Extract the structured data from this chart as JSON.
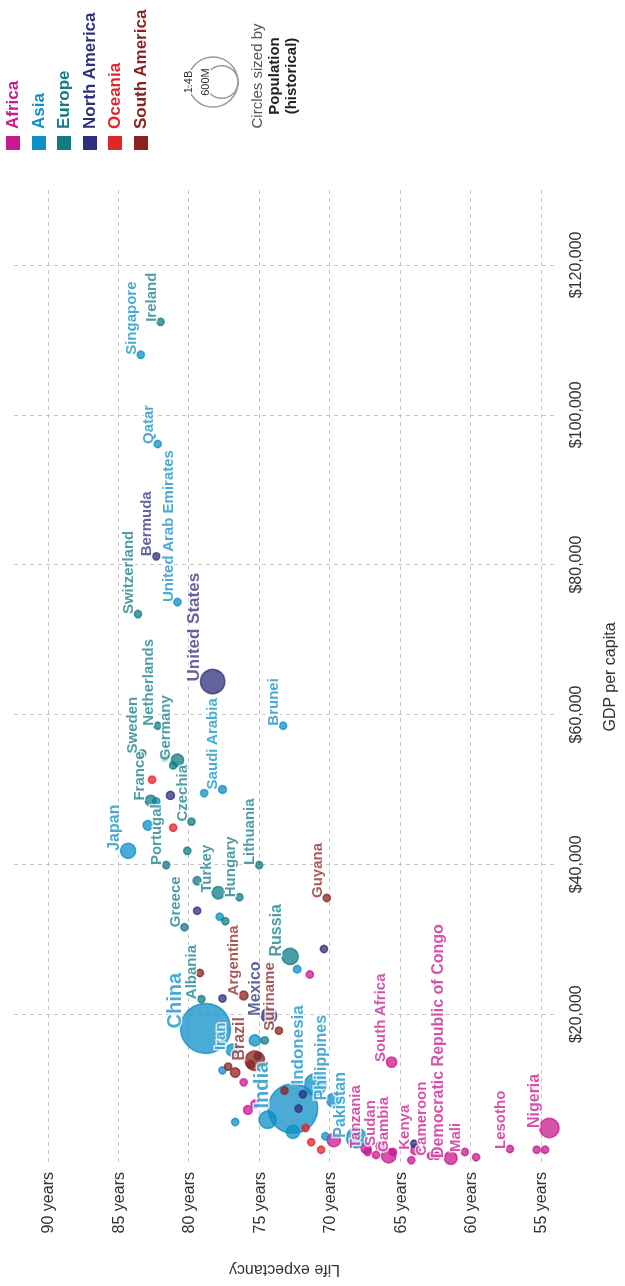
{
  "chart_data": {
    "type": "bubble",
    "xlabel": "Life expectancy",
    "ylabel": "GDP per capita",
    "xlim": [
      92.4,
      54
    ],
    "ylim": [
      0,
      130000
    ],
    "xticks": [
      {
        "value": 90,
        "label": "90 years"
      },
      {
        "value": 85,
        "label": "85 years"
      },
      {
        "value": 80,
        "label": "80 years"
      },
      {
        "value": 75,
        "label": "75 years"
      },
      {
        "value": 70,
        "label": "70 years"
      },
      {
        "value": 65,
        "label": "65 years"
      },
      {
        "value": 60,
        "label": "60 years"
      },
      {
        "value": 55,
        "label": "55 years"
      }
    ],
    "yticks": [
      {
        "value": 20000,
        "label": "$20,000"
      },
      {
        "value": 40000,
        "label": "$40,000"
      },
      {
        "value": 60000,
        "label": "$60,000"
      },
      {
        "value": 80000,
        "label": "$80,000"
      },
      {
        "value": 100000,
        "label": "$100,000"
      },
      {
        "value": 120000,
        "label": "$120,000"
      }
    ],
    "grid": true,
    "legend": "top left",
    "marker": "circle",
    "size_legend": [
      {
        "value": 1400,
        "label": "1.4B"
      },
      {
        "value": 600,
        "label": "600M"
      }
    ],
    "series": [
      {
        "name": "Africa",
        "color": "#c8198f",
        "x": [
          65.6,
          67.4,
          66.4,
          65.5,
          63.9,
          62.8,
          61.4,
          60.4,
          57.2,
          54.4,
          75.8,
          76.1,
          75.3,
          71.4,
          69.7,
          67.3,
          66.7,
          64.2,
          62.4,
          59.6,
          55.3,
          54.7,
          65.8
        ],
        "values": [
          13600,
          2100,
          2400,
          1600,
          1900,
          1100,
          800,
          1600,
          2000,
          4800,
          7200,
          10900,
          8000,
          25300,
          3200,
          1600,
          1200,
          500,
          1100,
          900,
          1900,
          1900,
          1100
        ],
        "sizes": [
          59,
          60,
          43,
          30,
          53,
          30,
          90,
          30,
          30,
          206,
          43,
          30,
          36,
          30,
          100,
          30,
          30,
          30,
          30,
          30,
          30,
          30,
          115
        ]
      },
      {
        "name": "Asia",
        "color": "#0e8fc6",
        "x": [
          83.4,
          82.2,
          80.8,
          77.6,
          73.3,
          84.3,
          78.8,
          76.9,
          72.6,
          71.0,
          69.7,
          68.1,
          82.9,
          82.3,
          78.9,
          72.3,
          76.7,
          74.4,
          72.6,
          70.3,
          77.6,
          75.3,
          77.8
        ],
        "values": [
          108000,
          96100,
          75000,
          50000,
          58500,
          41800,
          18100,
          15200,
          7400,
          10600,
          8500,
          3500,
          45200,
          48400,
          49500,
          26000,
          5600,
          5900,
          4300,
          3700,
          12500,
          16500,
          33000
        ],
        "sizes": [
          30,
          30,
          30,
          35,
          30,
          126,
          1400,
          84,
          1380,
          270,
          110,
          220,
          52,
          30,
          30,
          32,
          30,
          165,
          97,
          30,
          30,
          70,
          30
        ]
      },
      {
        "name": "Europe",
        "color": "#127c85",
        "x": [
          82.0,
          83.6,
          82.2,
          83.3,
          80.8,
          82.7,
          81.6,
          79.8,
          80.3,
          77.9,
          76.4,
          75.0,
          72.8,
          79.1,
          81.7,
          81.1,
          80.1,
          79.4,
          77.4,
          74.6
        ],
        "values": [
          112400,
          73400,
          58500,
          54800,
          53900,
          48500,
          39900,
          45700,
          31600,
          36200,
          35600,
          39900,
          27700,
          22000,
          54300,
          53200,
          41800,
          37800,
          32400,
          16500
        ],
        "sizes": [
          30,
          30,
          30,
          30,
          83,
          65,
          30,
          30,
          30,
          84,
          30,
          30,
          145,
          30,
          30,
          30,
          30,
          38,
          30,
          30
        ]
      },
      {
        "name": "North America",
        "color": "#2f2f7e",
        "x": [
          82.3,
          78.3,
          74.3,
          81.3,
          70.4,
          79.4,
          77.6,
          71.9,
          64.0,
          75.1,
          72.2
        ],
        "values": [
          81100,
          64400,
          19800,
          49200,
          28700,
          33800,
          22100,
          9300,
          2700,
          14400,
          7400
        ],
        "sizes": [
          30,
          330,
          128,
          38,
          30,
          30,
          30,
          30,
          30,
          30,
          30
        ]
      },
      {
        "name": "Oceania",
        "color": "#e0262b",
        "x": [
          82.6,
          81.1,
          71.7,
          71.3,
          70.6
        ],
        "values": [
          51300,
          44900,
          4800,
          2900,
          1900
        ],
        "sizes": [
          30,
          30,
          30,
          30,
          30
        ]
      },
      {
        "name": "South America",
        "color": "#8a2421",
        "x": [
          70.2,
          76.1,
          75.3,
          73.6,
          79.2,
          77.2,
          76.7,
          75.6,
          73.2
        ],
        "values": [
          35500,
          22500,
          13800,
          17800,
          25500,
          13000,
          12200,
          13300,
          9800
        ],
        "sizes": [
          30,
          45,
          212,
          30,
          30,
          30,
          50,
          33,
          30
        ]
      }
    ],
    "annotations": [
      {
        "text": "South Africa",
        "x": 65.6,
        "y": 13600
      },
      {
        "text": "Tanzania",
        "x": 67.4,
        "y": 2100
      },
      {
        "text": "Sudan",
        "x": 66.4,
        "y": 2400
      },
      {
        "text": "Gambia",
        "x": 65.5,
        "y": 1600
      },
      {
        "text": "Kenya",
        "x": 63.9,
        "y": 1900
      },
      {
        "text": "Cameroon",
        "x": 62.8,
        "y": 1100
      },
      {
        "text": "Democratic Republic of Congo",
        "x": 61.4,
        "y": 800
      },
      {
        "text": "Mali",
        "x": 60.4,
        "y": 1600
      },
      {
        "text": "Lesotho",
        "x": 57.2,
        "y": 2000
      },
      {
        "text": "Nigeria",
        "x": 54.4,
        "y": 4800
      },
      {
        "text": "Singapore",
        "x": 83.4,
        "y": 108000
      },
      {
        "text": "Qatar",
        "x": 82.2,
        "y": 96100
      },
      {
        "text": "United Arab Emirates",
        "x": 80.8,
        "y": 75000
      },
      {
        "text": "Saudi Arabia",
        "x": 77.6,
        "y": 50000
      },
      {
        "text": "Brunei",
        "x": 73.3,
        "y": 58500
      },
      {
        "text": "Japan",
        "x": 84.3,
        "y": 41800
      },
      {
        "text": "China",
        "x": 78.8,
        "y": 18100
      },
      {
        "text": "Iran",
        "x": 76.9,
        "y": 15200
      },
      {
        "text": "India",
        "x": 72.6,
        "y": 7400
      },
      {
        "text": "Indonesia",
        "x": 71.0,
        "y": 10600
      },
      {
        "text": "Philippines",
        "x": 69.7,
        "y": 8500
      },
      {
        "text": "Pakistan",
        "x": 68.1,
        "y": 3500
      },
      {
        "text": "Ireland",
        "x": 82.0,
        "y": 112400
      },
      {
        "text": "Switzerland",
        "x": 83.6,
        "y": 73400
      },
      {
        "text": "Netherlands",
        "x": 82.2,
        "y": 58500
      },
      {
        "text": "Sweden",
        "x": 83.3,
        "y": 54800
      },
      {
        "text": "Germany",
        "x": 80.8,
        "y": 53900
      },
      {
        "text": "France",
        "x": 82.7,
        "y": 48500
      },
      {
        "text": "Portugal",
        "x": 81.6,
        "y": 39900
      },
      {
        "text": "Czechia",
        "x": 79.8,
        "y": 45700
      },
      {
        "text": "Greece",
        "x": 80.3,
        "y": 31600
      },
      {
        "text": "Turkey",
        "x": 77.9,
        "y": 36200
      },
      {
        "text": "Hungary",
        "x": 76.4,
        "y": 35600
      },
      {
        "text": "Lithuania",
        "x": 75.0,
        "y": 39900
      },
      {
        "text": "Russia",
        "x": 72.8,
        "y": 27700
      },
      {
        "text": "Albania",
        "x": 79.1,
        "y": 22000
      },
      {
        "text": "Bermuda",
        "x": 82.3,
        "y": 81100
      },
      {
        "text": "United States",
        "x": 78.3,
        "y": 64400
      },
      {
        "text": "Mexico",
        "x": 74.3,
        "y": 19800
      },
      {
        "text": "Guyana",
        "x": 70.2,
        "y": 35500
      },
      {
        "text": "Argentina",
        "x": 76.1,
        "y": 22500
      },
      {
        "text": "Brazil",
        "x": 75.3,
        "y": 13800
      },
      {
        "text": "Suriname",
        "x": 73.6,
        "y": 17800
      },
      "Circles sized by",
      "Population (historical)"
    ]
  }
}
